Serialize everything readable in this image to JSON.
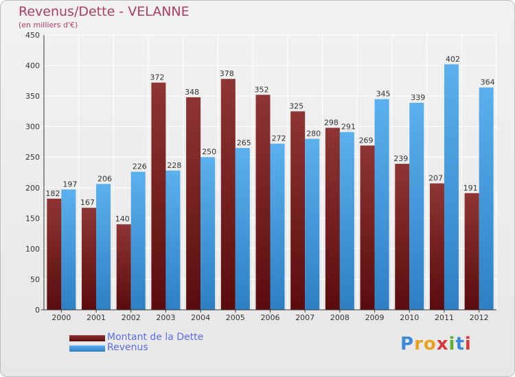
{
  "header": {
    "title": "Revenus/Dette - VELANNE",
    "subtitle": "(en milliers d'€)"
  },
  "legend": {
    "debt_label": "Montant de la Dette",
    "revenue_label": "Revenus"
  },
  "logo": {
    "text": "Proxiti"
  },
  "colors": {
    "debt": "#7a1f1f",
    "revenue": "#4aa3e6",
    "title": "#b03a67",
    "legend_text": "#5a6ef2"
  },
  "chart_data": {
    "type": "bar",
    "categories": [
      "2000",
      "2001",
      "2002",
      "2003",
      "2004",
      "2005",
      "2006",
      "2007",
      "2008",
      "2009",
      "2010",
      "2011",
      "2012"
    ],
    "series": [
      {
        "name": "Montant de la Dette",
        "values": [
          182,
          167,
          140,
          372,
          348,
          378,
          352,
          325,
          298,
          269,
          239,
          207,
          191
        ]
      },
      {
        "name": "Revenus",
        "values": [
          197,
          206,
          226,
          228,
          250,
          265,
          272,
          280,
          291,
          345,
          339,
          402,
          364
        ]
      }
    ],
    "title": "Revenus/Dette - VELANNE",
    "ylabel": "(en milliers d'€)",
    "ylim": [
      0,
      450
    ],
    "yticks": [
      0,
      50,
      100,
      150,
      200,
      250,
      300,
      350,
      400,
      450
    ],
    "grid": true,
    "legend_position": "bottom-left"
  }
}
